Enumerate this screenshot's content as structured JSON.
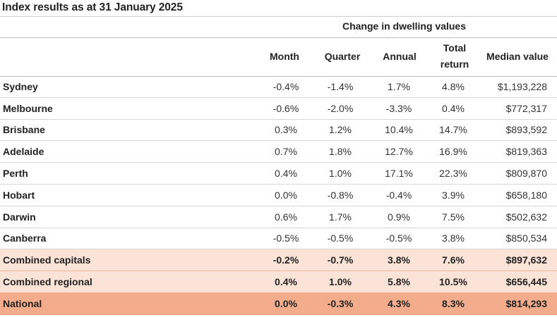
{
  "title": "Index results as at 31 January 2025",
  "group_header": "Change in dwelling values",
  "columns": {
    "month": "Month",
    "quarter": "Quarter",
    "annual": "Annual",
    "total_return_line1": "Total",
    "total_return_line2": "return",
    "median_value": "Median value"
  },
  "rows": [
    {
      "region": "Sydney",
      "month": "-0.4%",
      "quarter": "-1.4%",
      "annual": "1.7%",
      "total_return": "4.8%",
      "median": "$1,193,228"
    },
    {
      "region": "Melbourne",
      "month": "-0.6%",
      "quarter": "-2.0%",
      "annual": "-3.3%",
      "total_return": "0.4%",
      "median": "$772,317"
    },
    {
      "region": "Brisbane",
      "month": "0.3%",
      "quarter": "1.2%",
      "annual": "10.4%",
      "total_return": "14.7%",
      "median": "$893,592"
    },
    {
      "region": "Adelaide",
      "month": "0.7%",
      "quarter": "1.8%",
      "annual": "12.7%",
      "total_return": "16.9%",
      "median": "$819,363"
    },
    {
      "region": "Perth",
      "month": "0.4%",
      "quarter": "1.0%",
      "annual": "17.1%",
      "total_return": "22.3%",
      "median": "$809,870"
    },
    {
      "region": "Hobart",
      "month": "0.0%",
      "quarter": "-0.8%",
      "annual": "-0.4%",
      "total_return": "3.9%",
      "median": "$658,180"
    },
    {
      "region": "Darwin",
      "month": "0.6%",
      "quarter": "1.7%",
      "annual": "0.9%",
      "total_return": "7.5%",
      "median": "$502,632"
    },
    {
      "region": "Canberra",
      "month": "-0.5%",
      "quarter": "-0.5%",
      "annual": "-0.5%",
      "total_return": "3.8%",
      "median": "$850,534"
    },
    {
      "region": "Combined capitals",
      "month": "-0.2%",
      "quarter": "-0.7%",
      "annual": "3.8%",
      "total_return": "7.6%",
      "median": "$897,632"
    },
    {
      "region": "Combined regional",
      "month": "0.4%",
      "quarter": "1.0%",
      "annual": "5.8%",
      "total_return": "10.5%",
      "median": "$656,445"
    },
    {
      "region": "National",
      "month": "0.0%",
      "quarter": "-0.3%",
      "annual": "4.3%",
      "total_return": "8.3%",
      "median": "$814,293"
    }
  ],
  "colors": {
    "highlight_light": "#fbe3d7",
    "highlight_strong": "#f3ad8c"
  }
}
